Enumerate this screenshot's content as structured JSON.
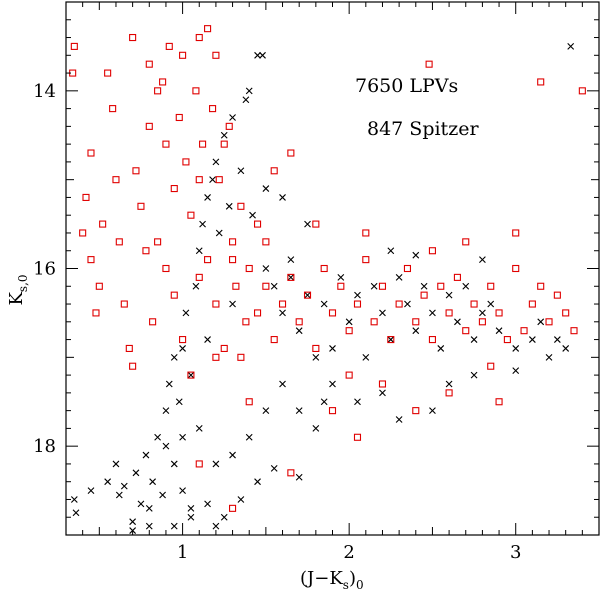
{
  "chart_data": {
    "type": "scatter",
    "title": "",
    "xlim": [
      0.3,
      3.5
    ],
    "ylim": [
      19.0,
      13.0
    ],
    "y_inverted": true,
    "xticks": [
      1,
      2,
      3
    ],
    "yticks": [
      14,
      16,
      18
    ],
    "xtick_labels": [
      "1",
      "2",
      "3"
    ],
    "ytick_labels": [
      "14",
      "16",
      "18"
    ],
    "grid": false,
    "annotations": [
      "7650 LPVs",
      "847 Spitzer"
    ],
    "series": [
      {
        "name": "LPVs",
        "marker": "x",
        "color": "#000000",
        "count": 7650,
        "points": [
          [
            0.35,
            18.6
          ],
          [
            0.36,
            18.75
          ],
          [
            0.45,
            18.5
          ],
          [
            0.55,
            18.4
          ],
          [
            0.6,
            18.2
          ],
          [
            0.62,
            18.55
          ],
          [
            0.65,
            18.45
          ],
          [
            0.7,
            18.85
          ],
          [
            0.72,
            18.3
          ],
          [
            0.75,
            18.65
          ],
          [
            0.78,
            18.1
          ],
          [
            0.8,
            18.7
          ],
          [
            0.82,
            18.4
          ],
          [
            0.85,
            17.9
          ],
          [
            0.88,
            18.55
          ],
          [
            0.9,
            18.0
          ],
          [
            0.9,
            17.6
          ],
          [
            0.92,
            17.3
          ],
          [
            0.95,
            18.2
          ],
          [
            0.95,
            17.0
          ],
          [
            0.98,
            17.5
          ],
          [
            1.0,
            16.9
          ],
          [
            1.0,
            18.5
          ],
          [
            1.02,
            16.5
          ],
          [
            1.05,
            17.2
          ],
          [
            1.05,
            18.8
          ],
          [
            1.08,
            16.2
          ],
          [
            1.1,
            15.8
          ],
          [
            1.1,
            17.8
          ],
          [
            1.12,
            15.5
          ],
          [
            1.15,
            15.2
          ],
          [
            1.15,
            16.8
          ],
          [
            1.18,
            15.0
          ],
          [
            1.2,
            14.8
          ],
          [
            1.22,
            15.6
          ],
          [
            1.25,
            14.5
          ],
          [
            1.28,
            15.3
          ],
          [
            1.3,
            14.3
          ],
          [
            1.3,
            16.4
          ],
          [
            1.35,
            14.9
          ],
          [
            1.38,
            14.1
          ],
          [
            1.4,
            14.0
          ],
          [
            1.42,
            15.4
          ],
          [
            1.45,
            13.6
          ],
          [
            1.48,
            13.6
          ],
          [
            1.5,
            16.0
          ],
          [
            1.55,
            16.2
          ],
          [
            1.6,
            16.5
          ],
          [
            1.65,
            16.1
          ],
          [
            1.7,
            16.7
          ],
          [
            1.75,
            16.3
          ],
          [
            1.8,
            17.0
          ],
          [
            1.85,
            16.4
          ],
          [
            1.9,
            16.9
          ],
          [
            1.95,
            16.1
          ],
          [
            2.0,
            16.6
          ],
          [
            2.05,
            16.3
          ],
          [
            2.1,
            17.0
          ],
          [
            2.15,
            16.2
          ],
          [
            2.2,
            16.5
          ],
          [
            2.25,
            16.8
          ],
          [
            2.3,
            16.1
          ],
          [
            2.35,
            16.4
          ],
          [
            2.4,
            16.7
          ],
          [
            2.45,
            16.2
          ],
          [
            2.5,
            16.5
          ],
          [
            2.55,
            16.9
          ],
          [
            2.6,
            16.3
          ],
          [
            2.65,
            16.6
          ],
          [
            2.7,
            16.2
          ],
          [
            2.75,
            16.8
          ],
          [
            2.8,
            16.5
          ],
          [
            2.85,
            16.4
          ],
          [
            2.9,
            16.7
          ],
          [
            3.0,
            16.9
          ],
          [
            3.1,
            16.8
          ],
          [
            3.15,
            16.6
          ],
          [
            3.2,
            17.0
          ],
          [
            3.25,
            16.8
          ],
          [
            3.3,
            16.9
          ],
          [
            3.33,
            13.5
          ],
          [
            1.2,
            18.2
          ],
          [
            1.3,
            18.1
          ],
          [
            1.4,
            17.9
          ],
          [
            1.5,
            17.6
          ],
          [
            1.6,
            17.3
          ],
          [
            1.7,
            17.6
          ],
          [
            1.8,
            17.8
          ],
          [
            1.9,
            17.3
          ],
          [
            1.45,
            18.4
          ],
          [
            1.35,
            18.6
          ],
          [
            1.2,
            18.9
          ],
          [
            0.8,
            18.9
          ],
          [
            0.7,
            18.95
          ],
          [
            1.7,
            18.35
          ],
          [
            1.55,
            18.25
          ],
          [
            1.85,
            17.5
          ],
          [
            2.05,
            17.5
          ],
          [
            2.3,
            17.7
          ],
          [
            2.5,
            17.6
          ],
          [
            3.0,
            17.15
          ],
          [
            2.2,
            17.4
          ],
          [
            1.65,
            15.9
          ],
          [
            1.75,
            15.5
          ],
          [
            1.6,
            15.2
          ],
          [
            1.5,
            15.1
          ],
          [
            2.25,
            15.8
          ],
          [
            2.4,
            15.85
          ],
          [
            2.8,
            15.9
          ],
          [
            1.0,
            17.9
          ],
          [
            0.95,
            18.9
          ],
          [
            1.05,
            18.7
          ],
          [
            1.25,
            18.8
          ],
          [
            1.15,
            18.65
          ],
          [
            2.6,
            17.3
          ],
          [
            2.75,
            17.2
          ]
        ]
      },
      {
        "name": "Spitzer",
        "marker": "square",
        "color": "#e00000",
        "count": 847,
        "points": [
          [
            0.35,
            13.5
          ],
          [
            0.34,
            13.8
          ],
          [
            0.4,
            15.6
          ],
          [
            0.42,
            15.2
          ],
          [
            0.45,
            14.7
          ],
          [
            0.45,
            15.9
          ],
          [
            0.48,
            16.5
          ],
          [
            0.5,
            16.2
          ],
          [
            0.52,
            15.5
          ],
          [
            0.55,
            13.8
          ],
          [
            0.58,
            14.2
          ],
          [
            0.6,
            15.0
          ],
          [
            0.62,
            15.7
          ],
          [
            0.65,
            16.4
          ],
          [
            0.68,
            16.9
          ],
          [
            0.7,
            17.1
          ],
          [
            0.7,
            13.4
          ],
          [
            0.72,
            14.9
          ],
          [
            0.75,
            15.3
          ],
          [
            0.78,
            15.8
          ],
          [
            0.8,
            13.7
          ],
          [
            0.8,
            14.4
          ],
          [
            0.82,
            16.6
          ],
          [
            0.85,
            14.0
          ],
          [
            0.85,
            15.7
          ],
          [
            0.88,
            13.9
          ],
          [
            0.9,
            14.6
          ],
          [
            0.9,
            16.0
          ],
          [
            0.92,
            13.5
          ],
          [
            0.95,
            15.1
          ],
          [
            0.95,
            16.3
          ],
          [
            0.98,
            14.3
          ],
          [
            1.0,
            13.6
          ],
          [
            1.0,
            16.8
          ],
          [
            1.02,
            14.8
          ],
          [
            1.05,
            15.4
          ],
          [
            1.08,
            14.0
          ],
          [
            1.1,
            13.4
          ],
          [
            1.1,
            16.1
          ],
          [
            1.12,
            14.6
          ],
          [
            1.15,
            13.3
          ],
          [
            1.15,
            15.9
          ],
          [
            1.18,
            14.2
          ],
          [
            1.2,
            13.6
          ],
          [
            1.2,
            16.4
          ],
          [
            1.22,
            15.0
          ],
          [
            1.25,
            16.9
          ],
          [
            1.28,
            14.4
          ],
          [
            1.3,
            15.7
          ],
          [
            1.32,
            16.2
          ],
          [
            1.35,
            15.3
          ],
          [
            1.38,
            16.6
          ],
          [
            1.4,
            16.0
          ],
          [
            1.45,
            16.5
          ],
          [
            1.5,
            16.2
          ],
          [
            1.55,
            16.8
          ],
          [
            1.6,
            16.4
          ],
          [
            1.65,
            16.1
          ],
          [
            1.65,
            14.7
          ],
          [
            1.7,
            16.6
          ],
          [
            1.75,
            16.3
          ],
          [
            1.8,
            16.9
          ],
          [
            1.85,
            16.0
          ],
          [
            1.9,
            16.5
          ],
          [
            1.95,
            16.2
          ],
          [
            2.0,
            16.7
          ],
          [
            2.05,
            16.4
          ],
          [
            2.1,
            15.9
          ],
          [
            2.15,
            16.6
          ],
          [
            2.2,
            16.2
          ],
          [
            2.25,
            16.8
          ],
          [
            2.3,
            16.4
          ],
          [
            2.35,
            16.0
          ],
          [
            2.4,
            16.6
          ],
          [
            2.45,
            16.3
          ],
          [
            2.48,
            13.7
          ],
          [
            2.5,
            16.8
          ],
          [
            2.55,
            16.2
          ],
          [
            2.6,
            16.5
          ],
          [
            2.65,
            16.1
          ],
          [
            2.7,
            16.7
          ],
          [
            2.75,
            16.4
          ],
          [
            2.8,
            16.6
          ],
          [
            2.85,
            16.2
          ],
          [
            2.9,
            16.5
          ],
          [
            2.95,
            16.8
          ],
          [
            3.0,
            16.0
          ],
          [
            3.05,
            16.7
          ],
          [
            3.1,
            16.4
          ],
          [
            3.15,
            16.2
          ],
          [
            3.2,
            16.6
          ],
          [
            3.25,
            16.3
          ],
          [
            3.3,
            16.5
          ],
          [
            3.35,
            16.7
          ],
          [
            3.15,
            13.9
          ],
          [
            3.4,
            14.0
          ],
          [
            2.0,
            17.2
          ],
          [
            2.2,
            17.3
          ],
          [
            2.4,
            17.6
          ],
          [
            2.6,
            17.4
          ],
          [
            2.9,
            17.5
          ],
          [
            2.85,
            17.1
          ],
          [
            1.4,
            17.5
          ],
          [
            1.2,
            17.0
          ],
          [
            1.05,
            17.2
          ],
          [
            1.3,
            15.9
          ],
          [
            1.5,
            15.7
          ],
          [
            1.8,
            15.5
          ],
          [
            2.1,
            15.6
          ],
          [
            2.5,
            15.8
          ],
          [
            2.7,
            15.7
          ],
          [
            3.0,
            15.6
          ],
          [
            1.9,
            17.6
          ],
          [
            2.05,
            17.9
          ],
          [
            1.65,
            18.3
          ],
          [
            1.3,
            18.7
          ],
          [
            1.1,
            18.2
          ],
          [
            1.35,
            17.0
          ],
          [
            1.45,
            15.5
          ],
          [
            1.25,
            14.6
          ],
          [
            1.55,
            14.9
          ],
          [
            1.1,
            15.0
          ]
        ]
      }
    ]
  },
  "figure": {
    "x_axis_label": "(J−K",
    "x_axis_label_sub": "s",
    "x_axis_label_end": ")",
    "x_axis_label_sub2": "0",
    "y_axis_label": "K",
    "y_axis_label_sub": "s,0"
  }
}
